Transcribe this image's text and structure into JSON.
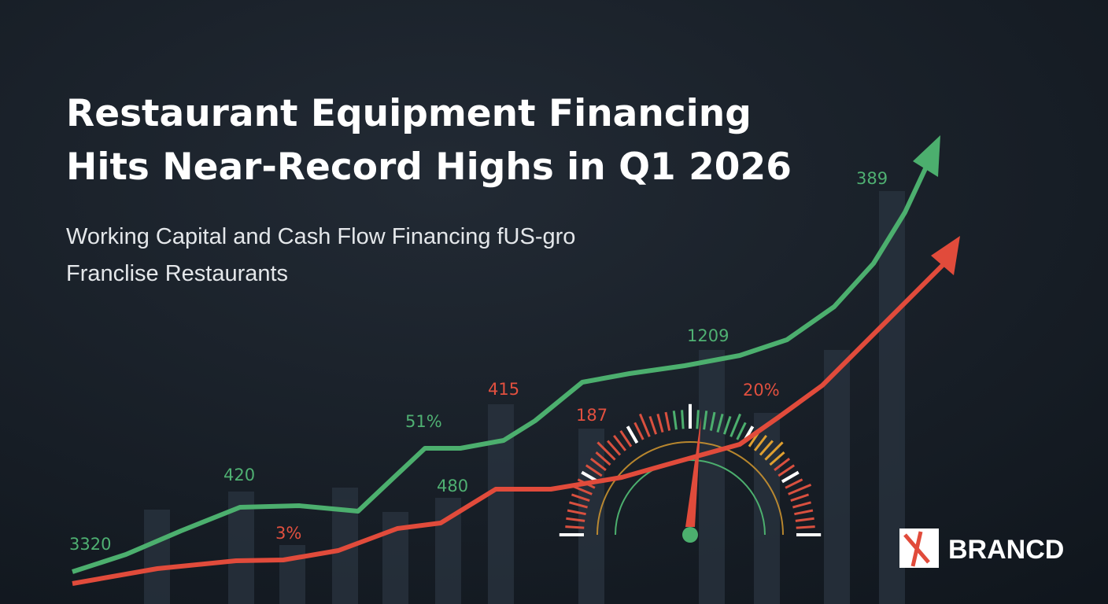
{
  "header": {
    "title": [
      "Restaurant Equipment Financing",
      "Hits Near-Record Highs in Q1 2026"
    ],
    "subtitle": [
      "Working Capital and Cash Flow Financing fUS-gro",
      "Franclise Restaurants"
    ]
  },
  "labels": [
    "3320",
    "420",
    "3%",
    "51%",
    "480",
    "415",
    "187",
    "1209",
    "20%",
    "389"
  ],
  "brand": "BRANCD"
}
